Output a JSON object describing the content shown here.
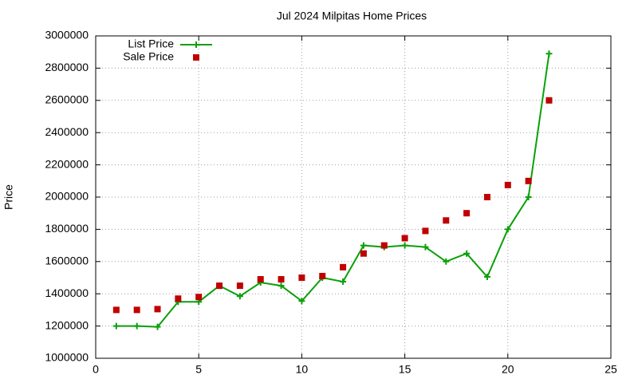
{
  "chart_data": {
    "type": "line",
    "title": "Jul 2024 Milpitas Home Prices",
    "y_label": "Price",
    "x": [
      1,
      2,
      3,
      4,
      5,
      6,
      7,
      8,
      9,
      10,
      11,
      12,
      13,
      14,
      15,
      16,
      17,
      18,
      19,
      20,
      21,
      22
    ],
    "series": [
      {
        "name": "List Price",
        "color": "#0aa00a",
        "style": "linespoints",
        "values": [
          1200000,
          1200000,
          1195000,
          1350000,
          1350000,
          1450000,
          1385000,
          1470000,
          1450000,
          1355000,
          1500000,
          1475000,
          1700000,
          1690000,
          1700000,
          1690000,
          1600000,
          1650000,
          1505000,
          1800000,
          2000000,
          2890000
        ]
      },
      {
        "name": "Sale Price",
        "color": "#c00000",
        "style": "points",
        "values": [
          1300000,
          1300000,
          1305000,
          1370000,
          1380000,
          1450000,
          1450000,
          1490000,
          1490000,
          1500000,
          1510000,
          1565000,
          1650000,
          1700000,
          1745000,
          1790000,
          1855000,
          1900000,
          2000000,
          2075000,
          2100000,
          2600000
        ]
      }
    ],
    "xlim": [
      0,
      25
    ],
    "xticks": [
      0,
      5,
      10,
      15,
      20,
      25
    ],
    "ylim": [
      1000000,
      3000000
    ],
    "yticks": [
      1000000,
      1200000,
      1400000,
      1600000,
      1800000,
      2000000,
      2200000,
      2400000,
      2600000,
      2800000,
      3000000
    ],
    "grid": true,
    "legend": "top-left"
  }
}
